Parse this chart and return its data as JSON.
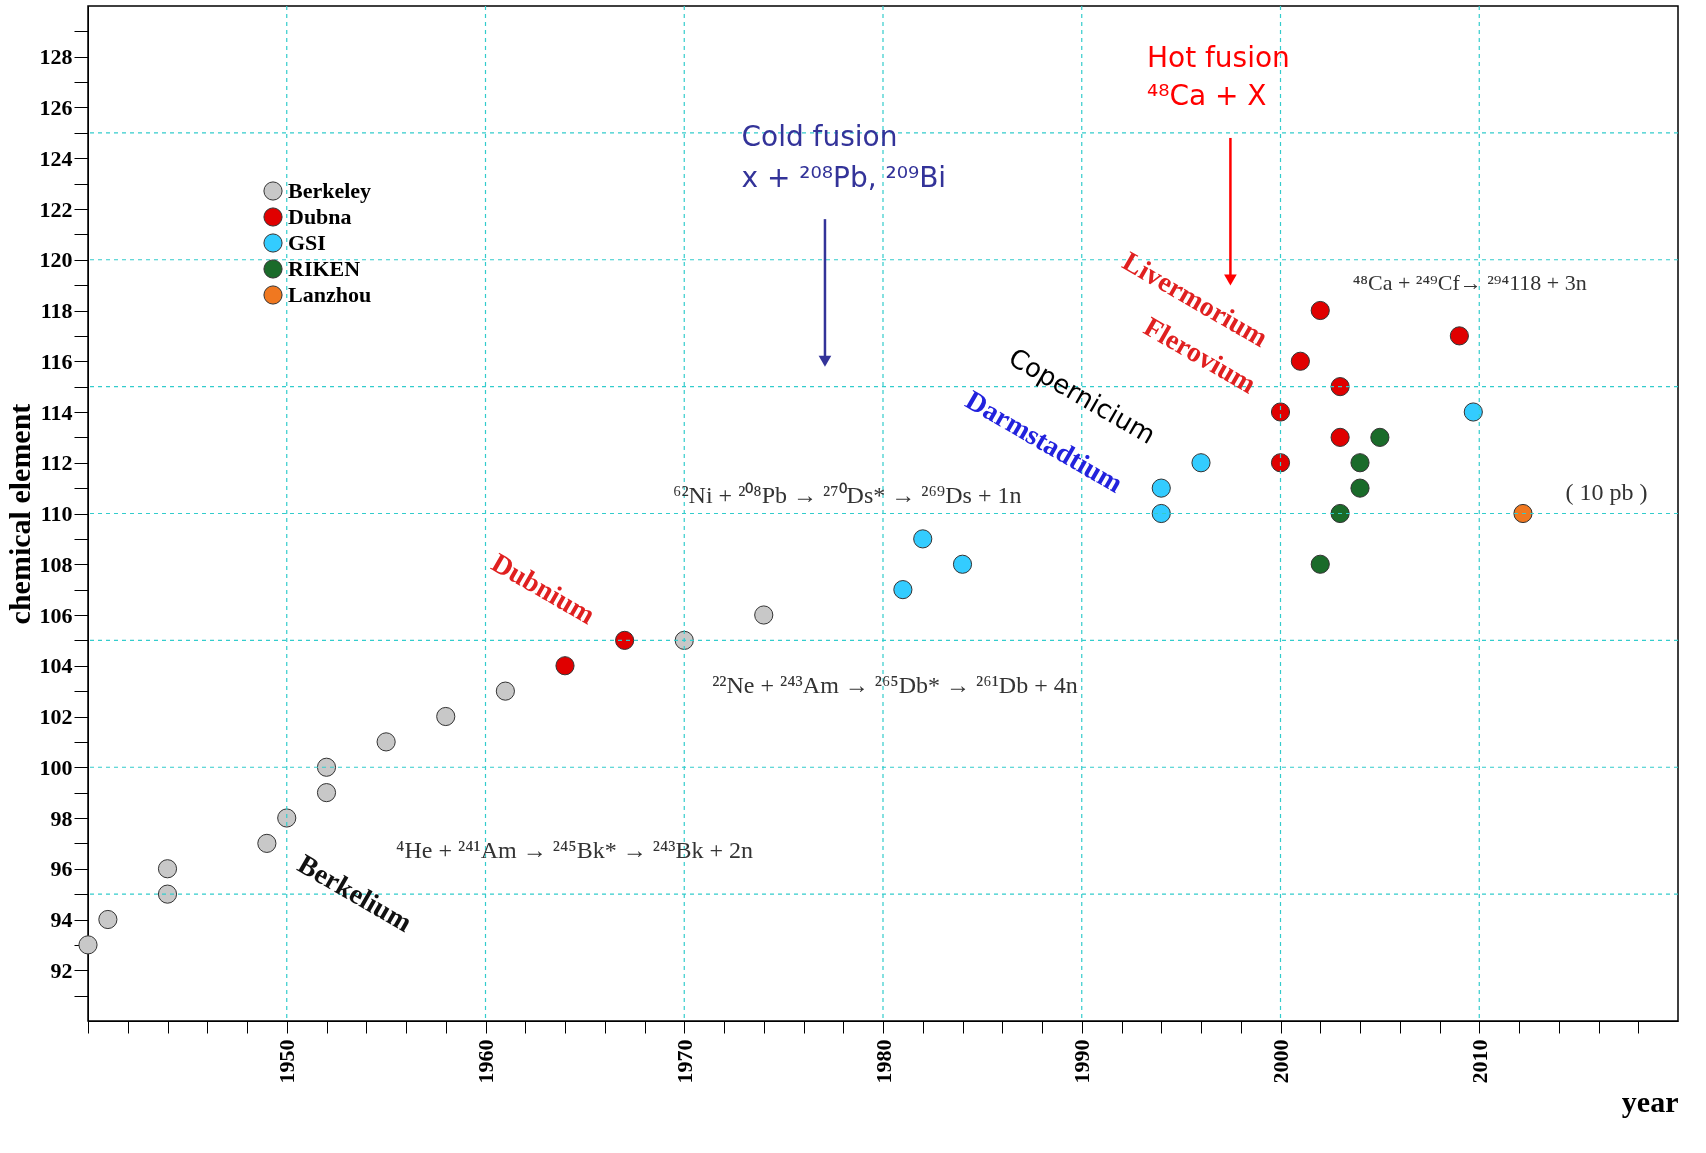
{
  "chart_data": {
    "type": "scatter",
    "xlabel": "year",
    "ylabel": "chemical  element",
    "xlim": [
      1940,
      2020
    ],
    "ylim": [
      90,
      130
    ],
    "xticks": [
      {
        "value": 1940,
        "label": null
      },
      {
        "value": 1942,
        "label": null
      },
      {
        "value": 1944,
        "label": null
      },
      {
        "value": 1946,
        "label": null
      },
      {
        "value": 1948,
        "label": null
      },
      1950,
      {
        "value": 1952,
        "label": null
      },
      {
        "value": 1954,
        "label": null
      },
      {
        "value": 1956,
        "label": null
      },
      {
        "value": 1958,
        "label": null
      },
      1960,
      {
        "value": 1962,
        "label": null
      },
      {
        "value": 1964,
        "label": null
      },
      {
        "value": 1966,
        "label": null
      },
      {
        "value": 1968,
        "label": null
      },
      1970,
      {
        "value": 1972,
        "label": null
      },
      {
        "value": 1974,
        "label": null
      },
      {
        "value": 1976,
        "label": null
      },
      {
        "value": 1978,
        "label": null
      },
      1980,
      {
        "value": 1982,
        "label": null
      },
      {
        "value": 1984,
        "label": null
      },
      {
        "value": 1986,
        "label": null
      },
      {
        "value": 1988,
        "label": null
      },
      1990,
      {
        "value": 1992,
        "label": null
      },
      {
        "value": 1994,
        "label": null
      },
      {
        "value": 1996,
        "label": null
      },
      {
        "value": 1998,
        "label": null
      },
      2000,
      {
        "value": 2002,
        "label": null
      },
      {
        "value": 2004,
        "label": null
      },
      {
        "value": 2006,
        "label": null
      },
      {
        "value": 2008,
        "label": null
      },
      2010,
      {
        "value": 2012,
        "label": null
      },
      {
        "value": 2014,
        "label": null
      },
      {
        "value": 2016,
        "label": null
      },
      {
        "value": 2018,
        "label": null
      }
    ],
    "yticks": [
      {
        "value": 91,
        "label": null
      },
      92,
      {
        "value": 93,
        "label": null
      },
      94,
      {
        "value": 95,
        "label": null
      },
      96,
      {
        "value": 97,
        "label": null
      },
      98,
      {
        "value": 99,
        "label": null
      },
      100,
      {
        "value": 101,
        "label": null
      },
      102,
      {
        "value": 103,
        "label": null
      },
      104,
      {
        "value": 105,
        "label": null
      },
      106,
      {
        "value": 107,
        "label": null
      },
      108,
      {
        "value": 109,
        "label": null
      },
      110,
      {
        "value": 111,
        "label": null
      },
      112,
      {
        "value": 113,
        "label": null
      },
      114,
      {
        "value": 115,
        "label": null
      },
      116,
      {
        "value": 117,
        "label": null
      },
      118,
      {
        "value": 119,
        "label": null
      },
      120,
      {
        "value": 121,
        "label": null
      },
      122,
      {
        "value": 123,
        "label": null
      },
      124,
      {
        "value": 125,
        "label": null
      },
      126,
      {
        "value": 127,
        "label": null
      },
      128,
      {
        "value": 129,
        "label": null
      }
    ],
    "grid": true,
    "legend": "top left",
    "marker": "circle",
    "series": [
      {
        "name": "Berkeley",
        "color": "#c8c8c8",
        "x": [
          1940,
          1941,
          1944,
          1944,
          1949,
          1950,
          1952,
          1952,
          1955,
          1958,
          1961,
          1970,
          1974
        ],
        "values": [
          93,
          94,
          95,
          96,
          97,
          98,
          99,
          100,
          101,
          102,
          103,
          105,
          106
        ]
      },
      {
        "name": "Dubna",
        "color": "#e00000",
        "x": [
          1964,
          1967,
          2000,
          2001,
          2002,
          2003,
          2003,
          2009,
          2000
        ],
        "values": [
          104,
          105,
          114,
          116,
          118,
          115,
          113,
          117,
          112
        ]
      },
      {
        "name": "GSI",
        "color": "#33ccff",
        "x": [
          1981,
          1982,
          1984,
          1994,
          1994,
          1996,
          2009.7
        ],
        "values": [
          107,
          109,
          108,
          110,
          111,
          112,
          114
        ]
      },
      {
        "name": "RIKEN",
        "color": "#1a6b2a",
        "x": [
          2002,
          2003,
          2004,
          2004,
          2005
        ],
        "values": [
          108,
          110,
          111,
          112,
          113
        ]
      },
      {
        "name": "Lanzhou",
        "color": "#f07820",
        "x": [
          2012.2
        ],
        "values": [
          110
        ]
      }
    ],
    "annotations": [
      "Cold fusion",
      "x + ²⁰⁸Pb, ²⁰⁹Bi",
      "Hot fusion",
      "⁴⁸Ca + X",
      "Livermorium",
      "Flerovium",
      "Copernicium",
      "Darmstadtium",
      "Dubnium",
      "Berkelium",
      "⁶²Ni + ²⁰⁸Pb → ²⁷⁰Ds* → ²⁶⁹Ds + 1n",
      "²²Ne + ²⁴³Am → ²⁶⁵Db* → ²⁶¹Db + 4n",
      "⁴He + ²⁴¹Am → ²⁴⁵Bk* → ²⁴³Bk + 2n",
      "⁴⁸Ca + ²⁴⁹Cf→ ²⁹⁴118 + 3n",
      "( 10 pb )"
    ]
  }
}
